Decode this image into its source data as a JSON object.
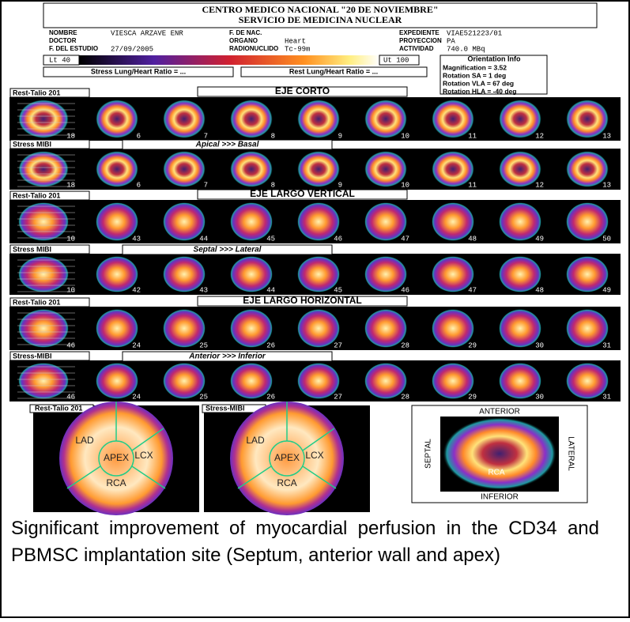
{
  "header": {
    "title": "CENTRO MEDICO NACIONAL \"20 DE NOVIEMBRE\"",
    "subtitle": "SERVICIO DE MEDICINA NUCLEAR",
    "fields": [
      {
        "label": "NOMBRE",
        "value": "VIESCA ARZAVE ENR"
      },
      {
        "label": "F. DE NAC."
      },
      {
        "label": "EXPEDIENTE",
        "value": "VIAE521223/01"
      },
      {
        "label": "DOCTOR"
      },
      {
        "label": "ORGANO",
        "value": "Heart"
      },
      {
        "label": "PROYECCION",
        "value": "PA"
      },
      {
        "label": "F. DEL ESTUDIO",
        "value": "27/09/2005"
      },
      {
        "label": "RADIONUCLIDO",
        "value": "Tc-99m"
      },
      {
        "label": "ACTIVIDAD",
        "value": "740.0 MBq"
      }
    ],
    "lower": "Lt 40",
    "upper": "Ut 100",
    "stress_ratio": "Stress Lung/Heart Ratio = ...",
    "rest_ratio": "Rest Lung/Heart Ratio = ...",
    "orientation": {
      "title": "Orientation Info",
      "lines": [
        "Magnification = 3.52",
        "Rotation SA =  1 deg",
        "Rotation VLA = 67 deg",
        "Rotation HLA = -40 deg"
      ]
    }
  },
  "rows": [
    {
      "label": "Rest-Talio 201",
      "heading": "EJE CORTO",
      "frames": [
        18,
        6,
        7,
        8,
        9,
        10,
        11,
        12,
        13
      ]
    },
    {
      "label": "Stress MIBI",
      "heading": "Apical  >>>  Basal",
      "frames": [
        18,
        6,
        7,
        8,
        9,
        10,
        11,
        12,
        13
      ]
    },
    {
      "label": "Rest-Talio 201",
      "heading": "EJE LARGO VERTICAL",
      "frames": [
        10,
        43,
        44,
        45,
        46,
        47,
        48,
        49,
        50
      ]
    },
    {
      "label": "Stress MIBI",
      "heading": "Septal  >>>  Lateral",
      "frames": [
        10,
        42,
        43,
        44,
        45,
        46,
        47,
        48,
        49
      ]
    },
    {
      "label": "Rest-Talio 201",
      "heading": "EJE LARGO HORIZONTAL",
      "frames": [
        46,
        24,
        25,
        26,
        27,
        28,
        29,
        30,
        31
      ]
    },
    {
      "label": "Stress-MIBI",
      "heading": "Anterior  >>>  Inferior",
      "frames": [
        46,
        24,
        25,
        26,
        27,
        28,
        29,
        30,
        31
      ]
    }
  ],
  "bullseyes": [
    {
      "label": "Rest-Talio 201",
      "regions": [
        "LAD",
        "APEX",
        "LCX",
        "RCA"
      ]
    },
    {
      "label": "Stress-MIBI",
      "regions": [
        "LAD",
        "APEX",
        "LCX",
        "RCA"
      ]
    }
  ],
  "polar": {
    "top": "ANTERIOR",
    "left": "SEPTAL",
    "right": "LATERAL",
    "bottom": "INFERIOR",
    "region": "RCA"
  },
  "caption": "Significant improvement of myocardial perfusion in the  CD34 and PBMSC  implantation site (Septum, anterior wall and apex)"
}
